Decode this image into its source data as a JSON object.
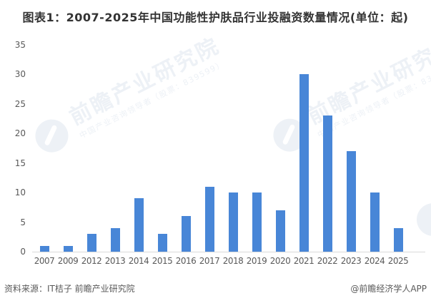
{
  "title": "图表1：2007-2025年中国功能性护肤品行业投融资数量情况(单位：起)",
  "chart_data": {
    "type": "bar",
    "title": "图表1：2007-2025年中国功能性护肤品行业投融资数量情况(单位：起)",
    "categories": [
      "2007",
      "2009",
      "2012",
      "2013",
      "2014",
      "2015",
      "2016",
      "2017",
      "2018",
      "2019",
      "2020",
      "2021",
      "2022",
      "2023",
      "2024",
      "2025"
    ],
    "values": [
      1,
      1,
      3,
      4,
      9,
      3,
      6,
      11,
      10,
      10,
      7,
      30,
      23,
      17,
      10,
      4
    ],
    "xlabel": "",
    "ylabel": "",
    "unit": "起",
    "ylim": [
      0,
      35
    ],
    "yticks": [
      0,
      5,
      10,
      15,
      20,
      25,
      30,
      35
    ],
    "grid": false,
    "legend": false
  },
  "footer": {
    "source": "资料来源：IT桔子 前瞻产业研究院",
    "credit": "@前瞻经济学人APP"
  },
  "watermark": {
    "brand": "前瞻产业研究院",
    "tagline": "中国产业咨询领导者（股票：839599）",
    "color": "#EDF1F6"
  },
  "colors": {
    "bar": "#4886D7",
    "title_text": "#333333",
    "axis_text": "#595959",
    "axis_line": "#D9D9D9",
    "background": "#FFFFFF"
  }
}
